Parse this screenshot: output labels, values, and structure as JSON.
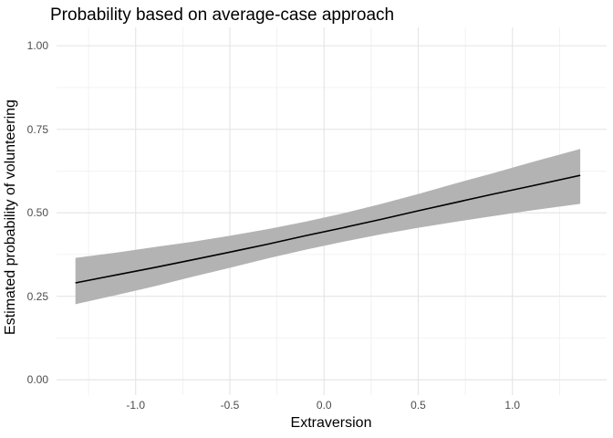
{
  "chart_data": {
    "type": "line",
    "title": "Probability based on average-case approach",
    "xlabel": "Extraversion",
    "ylabel": "Estimated probability of volunteering",
    "legend": "none",
    "grid": "major+minor",
    "xlim": [
      -1.42,
      1.5
    ],
    "ylim": [
      -0.046,
      1.055
    ],
    "x_ticks": [
      {
        "value": -1.0,
        "label": "-1.0"
      },
      {
        "value": -0.5,
        "label": "-0.5"
      },
      {
        "value": 0.0,
        "label": "0.0"
      },
      {
        "value": 0.5,
        "label": "0.5"
      },
      {
        "value": 1.0,
        "label": "1.0"
      }
    ],
    "y_ticks": [
      {
        "value": 0.0,
        "label": "0.00"
      },
      {
        "value": 0.25,
        "label": "0.25"
      },
      {
        "value": 0.5,
        "label": "0.50"
      },
      {
        "value": 0.75,
        "label": "0.75"
      },
      {
        "value": 1.0,
        "label": "1.00"
      }
    ],
    "x_minor_ticks": [
      -1.25,
      -0.75,
      -0.25,
      0.25,
      0.75,
      1.25
    ],
    "y_minor_ticks": [
      0.125,
      0.375,
      0.625,
      0.875
    ],
    "series": [
      {
        "name": "fitted-probability",
        "x": [
          -1.32,
          -1.1,
          -0.9,
          -0.7,
          -0.5,
          -0.3,
          -0.1,
          0.1,
          0.3,
          0.5,
          0.7,
          0.9,
          1.1,
          1.36
        ],
        "y": [
          0.29,
          0.314,
          0.336,
          0.359,
          0.382,
          0.406,
          0.431,
          0.455,
          0.48,
          0.506,
          0.531,
          0.556,
          0.58,
          0.612
        ]
      }
    ],
    "ribbon": {
      "name": "confidence-interval",
      "x": [
        -1.32,
        -1.1,
        -0.9,
        -0.7,
        -0.5,
        -0.3,
        -0.1,
        0.1,
        0.3,
        0.5,
        0.7,
        0.9,
        1.1,
        1.36
      ],
      "upper": [
        0.365,
        0.381,
        0.397,
        0.413,
        0.431,
        0.451,
        0.473,
        0.498,
        0.526,
        0.556,
        0.588,
        0.619,
        0.651,
        0.691
      ],
      "lower": [
        0.226,
        0.254,
        0.28,
        0.308,
        0.335,
        0.363,
        0.389,
        0.413,
        0.435,
        0.455,
        0.473,
        0.49,
        0.507,
        0.527
      ]
    },
    "colors": {
      "line": "#000000",
      "ribbon": "#b3b3b3",
      "grid_major": "#e4e4e4",
      "grid_minor": "#efefef",
      "tick_text": "#4d4d4d",
      "title_text": "#000000",
      "background": "#ffffff"
    }
  }
}
